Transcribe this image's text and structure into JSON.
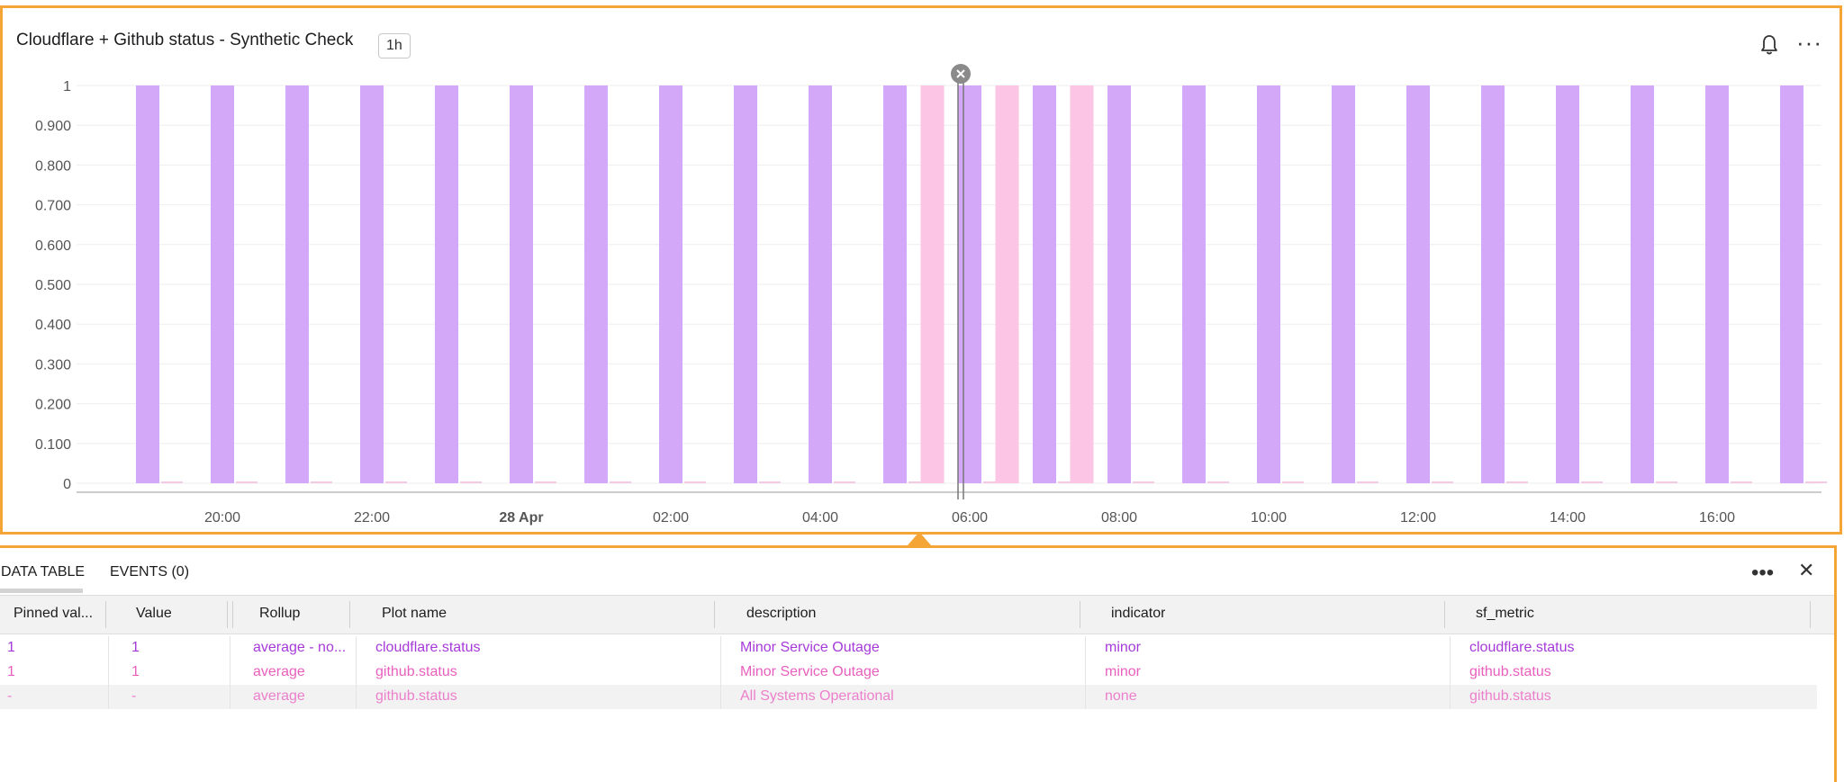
{
  "chart_panel": {
    "title": "Cloudflare + Github status - Synthetic Check",
    "resolution_badge": "1h"
  },
  "chart_data": {
    "type": "bar",
    "yticks": [
      "1",
      "0.900",
      "0.800",
      "0.700",
      "0.600",
      "0.500",
      "0.400",
      "0.300",
      "0.200",
      "0.100",
      "0"
    ],
    "ylim": [
      0,
      1
    ],
    "xticks": [
      "20:00",
      "22:00",
      "28 Apr",
      "02:00",
      "04:00",
      "06:00",
      "08:00",
      "10:00",
      "12:00",
      "14:00",
      "16:00"
    ],
    "x_bold_tick": "28 Apr",
    "series": [
      {
        "name": "cloudflare.status",
        "color": "#d4a8f9",
        "points": [
          {
            "x": "19:00",
            "y": 1
          },
          {
            "x": "20:00",
            "y": 1
          },
          {
            "x": "21:00",
            "y": 1
          },
          {
            "x": "22:00",
            "y": 1
          },
          {
            "x": "23:00",
            "y": 1
          },
          {
            "x": "00:00",
            "y": 1
          },
          {
            "x": "01:00",
            "y": 1
          },
          {
            "x": "02:00",
            "y": 1
          },
          {
            "x": "03:00",
            "y": 1
          },
          {
            "x": "04:00",
            "y": 1
          },
          {
            "x": "05:00",
            "y": 1
          },
          {
            "x": "06:00",
            "y": 1
          },
          {
            "x": "07:00",
            "y": 1
          },
          {
            "x": "08:00",
            "y": 1
          },
          {
            "x": "09:00",
            "y": 1
          },
          {
            "x": "10:00",
            "y": 1
          },
          {
            "x": "11:00",
            "y": 1
          },
          {
            "x": "12:00",
            "y": 1
          },
          {
            "x": "13:00",
            "y": 1
          },
          {
            "x": "14:00",
            "y": 1
          },
          {
            "x": "15:00",
            "y": 1
          },
          {
            "x": "16:00",
            "y": 1
          },
          {
            "x": "17:00",
            "y": 1
          }
        ]
      },
      {
        "name": "github.status",
        "color": "#fcc5e5",
        "points": [
          {
            "x": "05:30",
            "y": 1
          },
          {
            "x": "06:30",
            "y": 1
          },
          {
            "x": "07:30",
            "y": 1
          }
        ]
      }
    ],
    "marker": "06:00"
  },
  "table": {
    "tabs": [
      "DATA TABLE",
      "EVENTS (0)"
    ],
    "columns": [
      "Pinned val...",
      "Value",
      "Rollup",
      "Plot name",
      "description",
      "indicator",
      "sf_metric"
    ],
    "rows": [
      {
        "pinned": "1",
        "value": "1",
        "rollup": "average - no...",
        "plot": "cloudflare.status",
        "description": "Minor Service Outage",
        "indicator": "minor",
        "sf_metric": "cloudflare.status",
        "color": "#a63ad9"
      },
      {
        "pinned": "1",
        "value": "1",
        "rollup": "average",
        "plot": "github.status",
        "description": "Minor Service Outage",
        "indicator": "minor",
        "sf_metric": "github.status",
        "color": "#e85fbd"
      },
      {
        "pinned": "-",
        "value": "-",
        "rollup": "average",
        "plot": "github.status",
        "description": "All Systems Operational",
        "indicator": "none",
        "sf_metric": "github.status",
        "color": "#ec7fcb"
      }
    ]
  }
}
